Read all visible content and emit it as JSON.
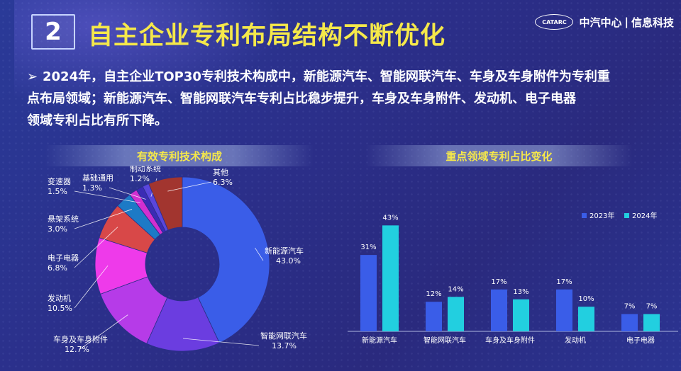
{
  "header": {
    "number": "2",
    "title": "自主企业专利布局结构不断优化",
    "brand_logo": "CATARC",
    "brand_left": "中汽中心",
    "brand_sep": "|",
    "brand_right": "信息科技"
  },
  "summary": {
    "bullet": "➢",
    "line1": "2024年，自主企业TOP30专利技术构成中，新能源汽车、智能网联汽车、车身及车身附件为专利重",
    "line2": "点布局领域；新能源汽车、智能网联汽车专利占比稳步提升，车身及车身附件、发动机、电子电器",
    "line3": "领域专利占比有所下降。"
  },
  "colors": {
    "title_yellow": "#f5e84a"
  },
  "chart_data": [
    {
      "type": "pie",
      "title": "有效专利技术构成",
      "slices": [
        {
          "name": "新能源汽车",
          "value": 43.0,
          "label": "43.0%",
          "color": "#3a5de8"
        },
        {
          "name": "智能网联汽车",
          "value": 13.7,
          "label": "13.7%",
          "color": "#6b3de0"
        },
        {
          "name": "车身及车身附件",
          "value": 12.7,
          "label": "12.7%",
          "color": "#b63be8"
        },
        {
          "name": "发动机",
          "value": 10.5,
          "label": "10.5%",
          "color": "#ee3aea"
        },
        {
          "name": "电子电器",
          "value": 6.8,
          "label": "6.8%",
          "color": "#d84848"
        },
        {
          "name": "悬架系统",
          "value": 3.0,
          "label": "3.0%",
          "color": "#1d7ac6"
        },
        {
          "name": "变速器",
          "value": 1.5,
          "label": "1.5%",
          "color": "#d12fd0"
        },
        {
          "name": "基础通用",
          "value": 1.3,
          "label": "1.3%",
          "color": "#3a2bb4"
        },
        {
          "name": "制动系统",
          "value": 1.2,
          "label": "1.2%",
          "color": "#5a46dc"
        },
        {
          "name": "其他",
          "value": 6.3,
          "label": "6.3%",
          "color": "#a2352f"
        }
      ]
    },
    {
      "type": "bar",
      "title": "重点领域专利占比变化",
      "categories": [
        "新能源汽车",
        "智能网联汽车",
        "车身及车身附件",
        "发动机",
        "电子电器"
      ],
      "series": [
        {
          "name": "2023年",
          "values": [
            31,
            12,
            17,
            17,
            7
          ],
          "labels": [
            "31%",
            "12%",
            "17%",
            "17%",
            "7%"
          ],
          "color": "#3a5de8"
        },
        {
          "name": "2024年",
          "values": [
            43,
            14,
            13,
            10,
            7
          ],
          "labels": [
            "43%",
            "14%",
            "13%",
            "10%",
            "7%"
          ],
          "color": "#22cfe0"
        }
      ],
      "ylim": [
        0,
        50
      ],
      "legend": "top-right"
    }
  ]
}
